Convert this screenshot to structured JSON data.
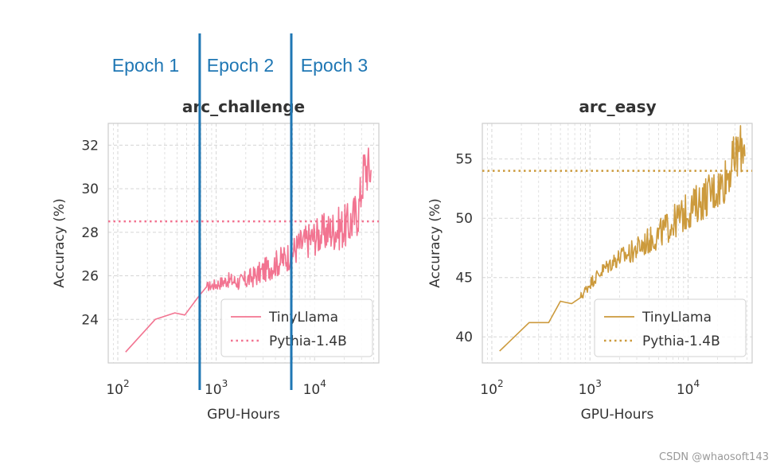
{
  "epoch_labels": [
    "Epoch 1",
    "Epoch 2",
    "Epoch 3"
  ],
  "watermark": "CSDN @whaosoft143",
  "colors": {
    "epoch": "#1f77b4",
    "pink": "#f27491",
    "gold": "#cc9a3c",
    "grid": "#d5d5d5",
    "frame": "#cccccc",
    "text": "#333333"
  },
  "chart_data": [
    {
      "type": "line",
      "title": "arc_challenge",
      "xlabel": "GPU-Hours",
      "ylabel": "Accuracy (%)",
      "xscale": "log",
      "xlim": [
        80,
        45000
      ],
      "ylim": [
        22.0,
        33.0
      ],
      "xticks": [
        100,
        1000,
        10000
      ],
      "xtick_labels": [
        {
          "base": "10",
          "exp": "2"
        },
        {
          "base": "10",
          "exp": "3"
        },
        {
          "base": "10",
          "exp": "4"
        }
      ],
      "yticks": [
        24,
        26,
        28,
        30,
        32
      ],
      "ytick_labels": [
        "24",
        "26",
        "28",
        "30",
        "32"
      ],
      "color": "#f27491",
      "epoch_boundaries": [
        680,
        5800
      ],
      "legend": {
        "position": "lower right",
        "entries": [
          "TinyLlama",
          "Pythia-1.4B"
        ]
      },
      "series": [
        {
          "name": "TinyLlama",
          "style": "solid",
          "anchors": [
            [
              120,
              22.5
            ],
            [
              240,
              24.0
            ],
            [
              380,
              24.3
            ],
            [
              480,
              24.2
            ],
            [
              650,
              25.0
            ],
            [
              800,
              25.5
            ],
            [
              1000,
              25.6
            ],
            [
              1300,
              25.8
            ],
            [
              1800,
              25.7
            ],
            [
              2500,
              26.0
            ],
            [
              3500,
              26.4
            ],
            [
              5000,
              26.8
            ],
            [
              7000,
              27.4
            ],
            [
              10000,
              27.8
            ],
            [
              15000,
              28.1
            ],
            [
              22000,
              28.3
            ],
            [
              28000,
              29.0
            ],
            [
              32000,
              31.0
            ],
            [
              38000,
              30.8
            ]
          ]
        },
        {
          "name": "Pythia-1.4B",
          "style": "dotted",
          "y": 28.5
        }
      ]
    },
    {
      "type": "line",
      "title": "arc_easy",
      "xlabel": "GPU-Hours",
      "ylabel": "Accuracy (%)",
      "xscale": "log",
      "xlim": [
        80,
        45000
      ],
      "ylim": [
        37.8,
        58.0
      ],
      "xticks": [
        100,
        1000,
        10000
      ],
      "xtick_labels": [
        {
          "base": "10",
          "exp": "2"
        },
        {
          "base": "10",
          "exp": "3"
        },
        {
          "base": "10",
          "exp": "4"
        }
      ],
      "yticks": [
        40,
        45,
        50,
        55
      ],
      "ytick_labels": [
        "40",
        "45",
        "50",
        "55"
      ],
      "color": "#cc9a3c",
      "epoch_boundaries": [],
      "legend": {
        "position": "lower right",
        "entries": [
          "TinyLlama",
          "Pythia-1.4B"
        ]
      },
      "series": [
        {
          "name": "TinyLlama",
          "style": "solid",
          "anchors": [
            [
              120,
              38.8
            ],
            [
              240,
              41.2
            ],
            [
              380,
              41.2
            ],
            [
              500,
              43.0
            ],
            [
              650,
              42.8
            ],
            [
              800,
              43.3
            ],
            [
              1000,
              44.5
            ],
            [
              1300,
              45.5
            ],
            [
              1800,
              46.5
            ],
            [
              2500,
              47.0
            ],
            [
              3500,
              47.8
            ],
            [
              5000,
              48.6
            ],
            [
              7000,
              49.6
            ],
            [
              10000,
              50.6
            ],
            [
              15000,
              51.8
            ],
            [
              22000,
              52.8
            ],
            [
              30000,
              55.0
            ],
            [
              38000,
              56.5
            ]
          ]
        },
        {
          "name": "Pythia-1.4B",
          "style": "dotted",
          "y": 54.0
        }
      ]
    }
  ]
}
